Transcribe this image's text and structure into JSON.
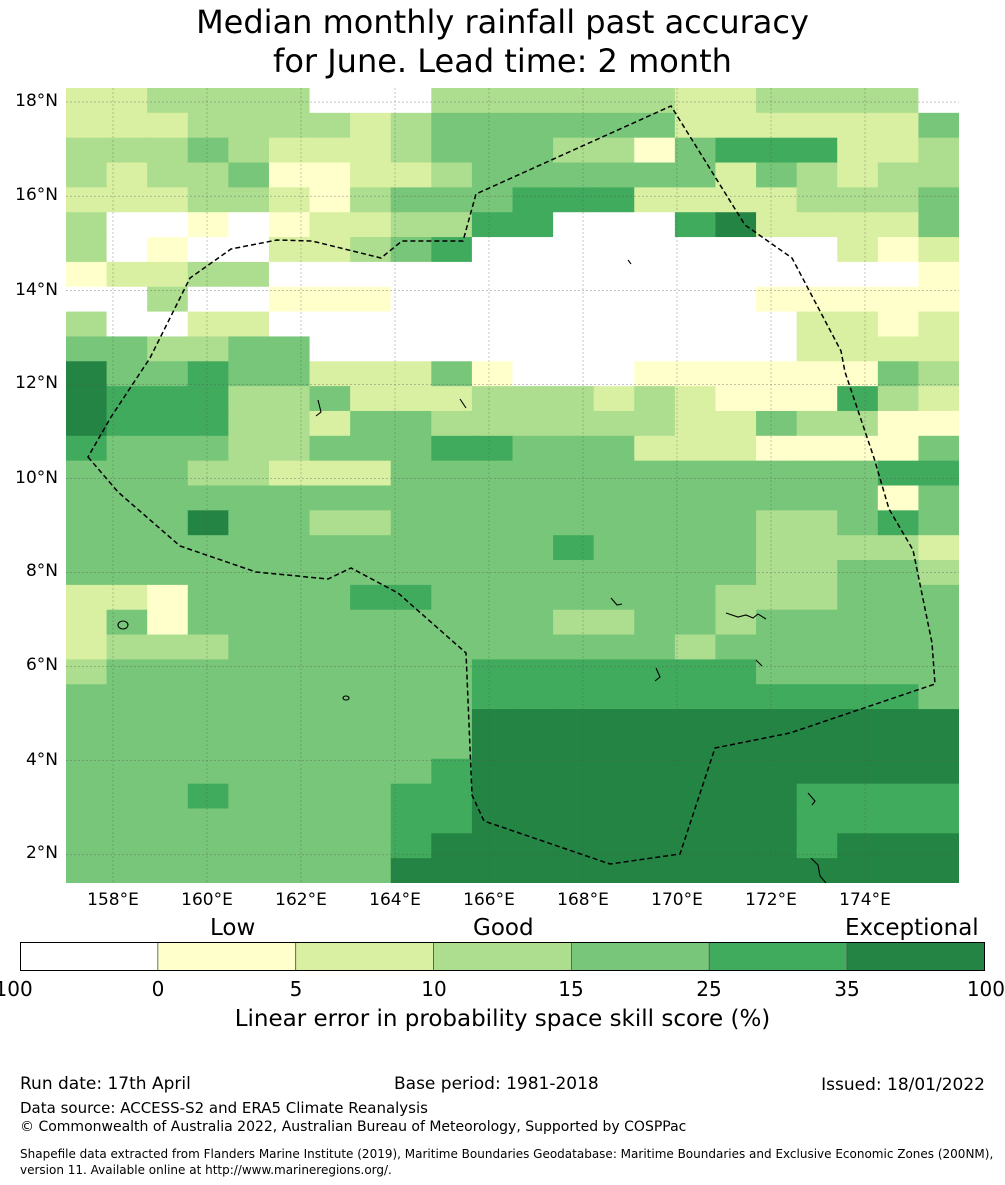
{
  "title": {
    "line1": "Median monthly rainfall past accuracy",
    "line2": "for June. Lead time: 2 month"
  },
  "map": {
    "lat_labels": [
      "18°N",
      "16°N",
      "14°N",
      "12°N",
      "10°N",
      "8°N",
      "6°N",
      "4°N",
      "2°N"
    ],
    "lon_labels": [
      "158°E",
      "160°E",
      "162°E",
      "164°E",
      "166°E",
      "168°E",
      "170°E",
      "172°E",
      "174°E"
    ],
    "lat_range": [
      1.4,
      18.3
    ],
    "lon_range": [
      157.0,
      176.0
    ],
    "grid_cell_deg": 0.833,
    "colors": [
      "#ffffff",
      "#ffffcc",
      "#d9f0a3",
      "#addd8e",
      "#78c679",
      "#41ab5d",
      "#238443"
    ],
    "legend_colors": [
      "#ffffff",
      "#ffffcc",
      "#d9f0a3",
      "#addd8e",
      "#78c679",
      "#41ab5d",
      "#238443"
    ],
    "skill_grid_rows_north_to_south": [
      "2233330003333332233330",
      "2223333234444442222224",
      "3334322234443314555223",
      "3233411223444444243233",
      "2223321344455522223334",
      "3001012233550005622224",
      "3010022345000000000212",
      "1223300000000000000001",
      "0030011100000000011111",
      "3002200000000000002212",
      "4433440000000000002222",
      "6445442224100011111143",
      "6555334222333232111532",
      "6555332443333332243311",
      "5444334445544422211114",
      "4443322244444444444455",
      "4444444444444444444414",
      "4446443344444444433454",
      "4444444444445444433332",
      "4444444444444444433443",
      "2214444554444444333444",
      "2414444444443344344444",
      "2333444444444443444444",
      "3444444444555555544444",
      "4444444444555555555554",
      "4444444444666666666666",
      "4444444444666666666666",
      "4444444445666666666666",
      "4445444455666666665555",
      "4444444455666666665555",
      "4444444456666666665666",
      "4444444466666666666666"
    ]
  },
  "colorbar": {
    "categories": [
      "Low",
      "Good",
      "Exceptional"
    ],
    "ticks": [
      "-100",
      "0",
      "5",
      "10",
      "15",
      "25",
      "35",
      "100"
    ],
    "label": "Linear error in probability space skill score (%)"
  },
  "footer": {
    "run_date": "Run date: 17th April",
    "base_period": "Base period: 1981-2018",
    "issued": "Issued: 18/01/2022",
    "data_source": "Data source: ACCESS-S2 and ERA5 Climate Reanalysis",
    "copyright": "© Commonwealth of Australia 2022, Australian Bureau of Meteorology, Supported by COSPPac",
    "shapefile": "Shapefile data extracted from Flanders Marine Institute (2019), Maritime Boundaries Geodatabase: Maritime Boundaries and Exclusive Economic Zones (200NM), version 11. Available online at http://www.marineregions.org/."
  }
}
